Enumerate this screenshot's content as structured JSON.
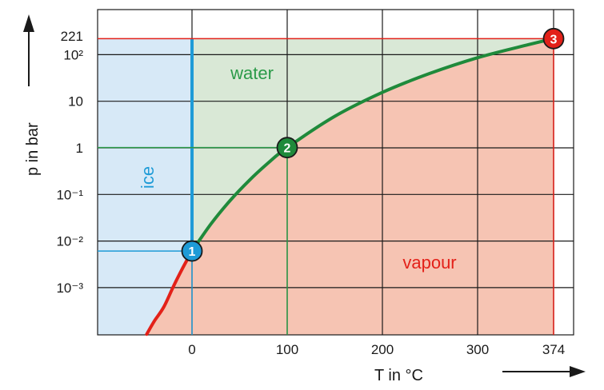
{
  "chart_data": {
    "type": "line",
    "title": "",
    "xlabel": "T in °C",
    "ylabel": "p in bar",
    "x_ticks": [
      "0",
      "100",
      "200",
      "300",
      "374"
    ],
    "y_ticks": [
      "221",
      "10²",
      "10",
      "1",
      "10⁻¹",
      "10⁻²",
      "10⁻³"
    ],
    "x_tick_values": [
      0,
      100,
      200,
      300,
      374
    ],
    "y_tick_values": [
      221,
      100,
      10,
      1,
      0.1,
      0.01,
      0.001
    ],
    "xlim": [
      -100,
      400
    ],
    "ylim": [
      0.0001,
      1000
    ],
    "yscale": "log",
    "grid": true,
    "regions": [
      {
        "label": "ice",
        "color": "#1e9bd7"
      },
      {
        "label": "water",
        "color": "#2a9a48"
      },
      {
        "label": "vapour",
        "color": "#e32119"
      }
    ],
    "series": [
      {
        "x": [
          -48,
          -40,
          -30,
          -20,
          -10,
          0.01
        ],
        "y": [
          0.0001,
          0.00019,
          0.00038,
          0.00103,
          0.0026,
          0.00611
        ],
        "color": "#e32119"
      },
      {
        "x": [
          0.01,
          20,
          40,
          60,
          80,
          100,
          150,
          200,
          250,
          300,
          350,
          374
        ],
        "y": [
          0.00611,
          0.0234,
          0.0738,
          0.199,
          0.474,
          1.013,
          4.76,
          15.5,
          39.7,
          85.9,
          165.3,
          221
        ],
        "color": "#1f8a3b"
      }
    ],
    "points": [
      {
        "label": "1",
        "x": 0.01,
        "y": 0.00611,
        "color": "#1e9bd7"
      },
      {
        "label": "2",
        "x": 100,
        "y": 1.013,
        "color": "#1f8a3b"
      },
      {
        "label": "3",
        "x": 374,
        "y": 221,
        "color": "#e32119"
      }
    ],
    "colors": {
      "ice_fill": "#d7e9f7",
      "water_fill": "#d9e8d6",
      "vapour_fill": "#f6c4b3",
      "grid": "#1a1a1a"
    }
  }
}
